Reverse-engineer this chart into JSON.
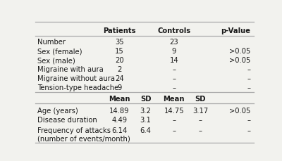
{
  "section1_rows": [
    [
      "Number",
      "35",
      "23",
      ""
    ],
    [
      "Sex (female)",
      "15",
      "9",
      ">0.05"
    ],
    [
      "Sex (male)",
      "20",
      "14",
      ">0.05"
    ],
    [
      "Migraine with aura",
      "2",
      "–",
      "–"
    ],
    [
      "Migraine without aura",
      "24",
      "–",
      "–"
    ],
    [
      "Tension-type headache",
      "9",
      "–",
      "–"
    ]
  ],
  "section2_rows": [
    [
      "Age (years)",
      "14.89",
      "3.2",
      "14.75",
      "3.17",
      ">0.05"
    ],
    [
      "Disease duration",
      "4.49",
      "3.1",
      "–",
      "–",
      "–"
    ],
    [
      "Frequency of attacks",
      "6.14",
      "6.4",
      "–",
      "–",
      "–"
    ],
    [
      "(number of events/month)",
      "",
      "",
      "",
      "",
      ""
    ]
  ],
  "bg_color": "#f2f2ee",
  "line_color": "#aaaaaa",
  "text_color": "#1a1a1a",
  "col_label": 0.01,
  "col_pat": 0.385,
  "col_sdp": 0.505,
  "col_ctrl": 0.635,
  "col_sdc": 0.755,
  "col_pval": 0.985,
  "fontsize": 7.2
}
